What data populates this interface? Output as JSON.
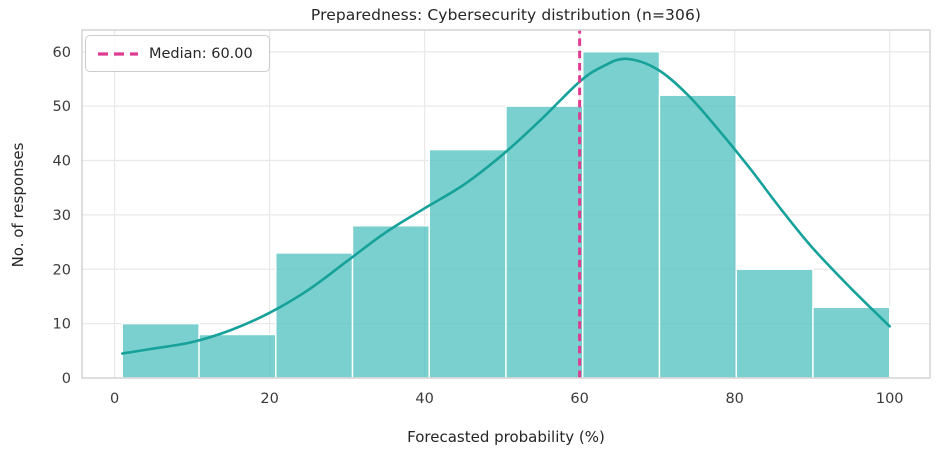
{
  "chart_data": {
    "type": "bar",
    "subtype": "histogram_with_kde",
    "title": "Preparedness: Cybersecurity distribution (n=306)",
    "xlabel": "Forecasted probability (%)",
    "ylabel": "No. of responses",
    "n": 306,
    "bin_edges": [
      1,
      10.9,
      20.8,
      30.7,
      40.6,
      50.5,
      60.4,
      70.3,
      80.2,
      90.1,
      100
    ],
    "counts": [
      10,
      8,
      23,
      28,
      42,
      50,
      60,
      52,
      20,
      13
    ],
    "kde_curve": {
      "x": [
        1,
        5,
        10,
        15,
        20,
        25,
        30,
        35,
        40,
        45,
        50,
        55,
        60,
        63,
        66,
        70,
        74,
        78,
        82,
        86,
        90,
        95,
        100
      ],
      "y": [
        4.5,
        5.4,
        6.6,
        8.8,
        12.0,
        16.2,
        21.5,
        26.8,
        31.2,
        35.5,
        41.0,
        47.5,
        54.5,
        57.3,
        58.7,
        56.8,
        52.0,
        45.5,
        38.5,
        31.0,
        24.0,
        16.5,
        9.5
      ]
    },
    "median_line": {
      "x": 60,
      "label": "Median: 60.00"
    },
    "x_ticks": [
      0,
      20,
      40,
      60,
      80,
      100
    ],
    "y_ticks": [
      0,
      10,
      20,
      30,
      40,
      50,
      60
    ],
    "xlim": [
      -4.2,
      105.2
    ],
    "ylim": [
      0,
      64
    ],
    "grid": true,
    "legend_position": "upper-left",
    "colors": {
      "bar_fill": "#54c3c0",
      "bar_fill_opacity": "0.78",
      "bar_edge": "#ffffff",
      "kde_line": "#16a19b",
      "median_line": "#de3a92",
      "grid_line": "#e9e9e9",
      "frame": "#d4d4d4",
      "tick_text": "#3a3a3a",
      "label_text": "#262626"
    }
  }
}
